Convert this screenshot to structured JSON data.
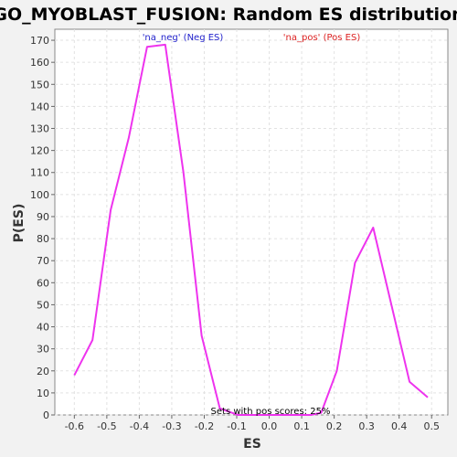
{
  "chart_data": {
    "type": "line",
    "title": "GO_MYOBLAST_FUSION: Random ES distribution",
    "xlabel": "ES",
    "ylabel": "P(ES)",
    "xlim": [
      -0.66,
      0.55
    ],
    "ylim": [
      0,
      175
    ],
    "x_ticks": [
      -0.6,
      -0.5,
      -0.4,
      -0.3,
      -0.2,
      -0.1,
      0.0,
      0.1,
      0.2,
      0.3,
      0.4,
      0.5
    ],
    "x_tick_labels": [
      "-0.6",
      "-0.5",
      "-0.4",
      "-0.3",
      "-0.2",
      "-0.1",
      "0.0",
      "0.1",
      "0.2",
      "0.3",
      "0.4",
      "0.5"
    ],
    "y_ticks": [
      0,
      10,
      20,
      30,
      40,
      50,
      60,
      70,
      80,
      90,
      100,
      110,
      120,
      130,
      140,
      150,
      160,
      170
    ],
    "y_tick_labels": [
      "0",
      "10",
      "20",
      "30",
      "40",
      "50",
      "60",
      "70",
      "80",
      "90",
      "100",
      "110",
      "120",
      "130",
      "140",
      "150",
      "160",
      "170"
    ],
    "grid": true,
    "legend": [
      {
        "label": "'na_neg' (Neg ES)",
        "color": "#2222cc"
      },
      {
        "label": "'na_pos' (Pos ES)",
        "color": "#dd2222"
      }
    ],
    "annotation": "Sets with pos scores: 25%",
    "series": [
      {
        "color": "#ee33ee",
        "x": [
          -0.6,
          -0.544,
          -0.488,
          -0.432,
          -0.376,
          -0.32,
          -0.264,
          -0.208,
          -0.152,
          -0.096,
          -0.04,
          0.016,
          0.072,
          0.128,
          0.16,
          0.208,
          0.264,
          0.32,
          0.376,
          0.432,
          0.488
        ],
        "y": [
          18,
          34,
          93,
          126,
          167,
          168,
          110,
          36,
          3,
          0,
          0,
          0,
          0,
          0,
          1,
          20,
          69,
          85,
          50,
          15,
          8
        ]
      }
    ]
  }
}
